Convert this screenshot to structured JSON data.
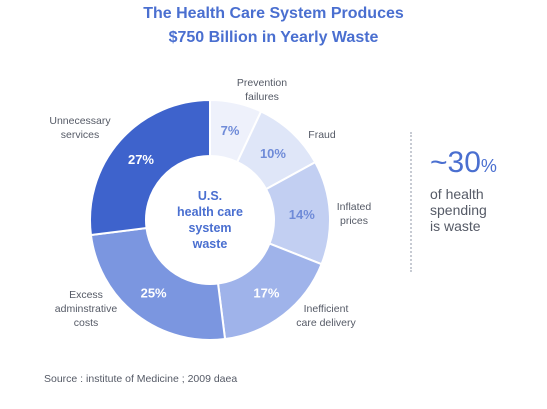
{
  "title_lines": [
    "The Health Care System Produces",
    "$750 Billion in Yearly Waste"
  ],
  "center_label_lines": [
    "U.S.",
    "health care",
    "system",
    "waste"
  ],
  "stat": {
    "value": "~30",
    "unit": "%",
    "description_lines": [
      "of health",
      "spending",
      "is waste"
    ]
  },
  "source": "Source : institute of Medicine ; 2009 daea",
  "colors": {
    "title": "#4a6fd0",
    "text": "#555a66",
    "slices": [
      "#eef1fb",
      "#dfe6f8",
      "#c2cff2",
      "#9fb3ea",
      "#7b96e0",
      "#3e63cc"
    ],
    "slice_label_dark_text": "#6f8bd8",
    "slice_label_light_text": "#ffffff"
  },
  "chart_data": {
    "type": "pie",
    "style": "donut",
    "categories": [
      [
        "Prevention",
        "failures"
      ],
      [
        "Fraud"
      ],
      [
        "Inflated",
        "prices"
      ],
      [
        "Inefficient",
        "care delivery"
      ],
      [
        "Excess",
        "adminstrative",
        "costs"
      ],
      [
        "Unnecessary",
        "services"
      ]
    ],
    "values": [
      7,
      10,
      14,
      17,
      25,
      27
    ],
    "value_labels": [
      "7%",
      "10%",
      "14%",
      "17%",
      "25%",
      "27%"
    ],
    "legend": "none"
  }
}
